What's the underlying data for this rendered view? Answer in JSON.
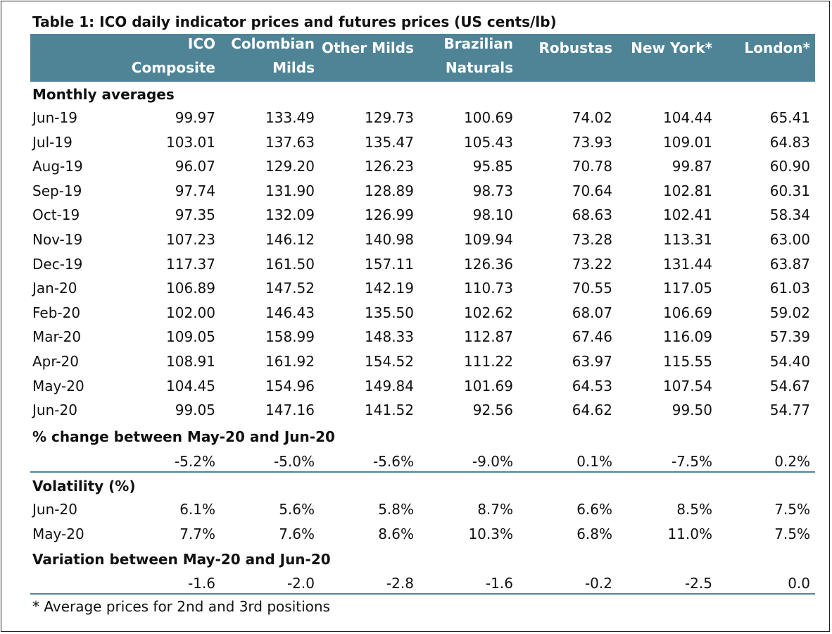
{
  "title": "Table 1: ICO daily indicator prices and futures prices (US cents/lb)",
  "headers": [
    {
      "line1": "ICO",
      "line2": "Composite"
    },
    {
      "line1": "Colombian",
      "line2": "Milds"
    },
    {
      "line1": "",
      "line2": "Other Milds"
    },
    {
      "line1": "Brazilian",
      "line2": "Naturals"
    },
    {
      "line1": "",
      "line2": "Robustas"
    },
    {
      "line1": "",
      "line2": "New York*"
    },
    {
      "line1": "",
      "line2": "London*"
    }
  ],
  "monthly": {
    "label": "Monthly averages",
    "rows": [
      {
        "label": "Jun-19",
        "values": [
          "99.97",
          "133.49",
          "129.73",
          "100.69",
          "74.02",
          "104.44",
          "65.41"
        ]
      },
      {
        "label": "Jul-19",
        "values": [
          "103.01",
          "137.63",
          "135.47",
          "105.43",
          "73.93",
          "109.01",
          "64.83"
        ]
      },
      {
        "label": "Aug-19",
        "values": [
          "96.07",
          "129.20",
          "126.23",
          "95.85",
          "70.78",
          "99.87",
          "60.90"
        ]
      },
      {
        "label": "Sep-19",
        "values": [
          "97.74",
          "131.90",
          "128.89",
          "98.73",
          "70.64",
          "102.81",
          "60.31"
        ]
      },
      {
        "label": "Oct-19",
        "values": [
          "97.35",
          "132.09",
          "126.99",
          "98.10",
          "68.63",
          "102.41",
          "58.34"
        ]
      },
      {
        "label": "Nov-19",
        "values": [
          "107.23",
          "146.12",
          "140.98",
          "109.94",
          "73.28",
          "113.31",
          "63.00"
        ]
      },
      {
        "label": "Dec-19",
        "values": [
          "117.37",
          "161.50",
          "157.11",
          "126.36",
          "73.22",
          "131.44",
          "63.87"
        ]
      },
      {
        "label": "Jan-20",
        "values": [
          "106.89",
          "147.52",
          "142.19",
          "110.73",
          "70.55",
          "117.05",
          "61.03"
        ]
      },
      {
        "label": "Feb-20",
        "values": [
          "102.00",
          "146.43",
          "135.50",
          "102.62",
          "68.07",
          "106.69",
          "59.02"
        ]
      },
      {
        "label": "Mar-20",
        "values": [
          "109.05",
          "158.99",
          "148.33",
          "112.87",
          "67.46",
          "116.09",
          "57.39"
        ]
      },
      {
        "label": "Apr-20",
        "values": [
          "108.91",
          "161.92",
          "154.52",
          "111.22",
          "63.97",
          "115.55",
          "54.40"
        ]
      },
      {
        "label": "May-20",
        "values": [
          "104.45",
          "154.96",
          "149.84",
          "101.69",
          "64.53",
          "107.54",
          "54.67"
        ]
      },
      {
        "label": "Jun-20",
        "values": [
          "99.05",
          "147.16",
          "141.52",
          "92.56",
          "64.62",
          "99.50",
          "54.77"
        ]
      }
    ]
  },
  "pct_change": {
    "label": "% change between May-20 and Jun-20",
    "values": [
      "-5.2%",
      "-5.0%",
      "-5.6%",
      "-9.0%",
      "0.1%",
      "-7.5%",
      "0.2%"
    ]
  },
  "volatility": {
    "label": "Volatility (%)",
    "rows": [
      {
        "label": "Jun-20",
        "values": [
          "6.1%",
          "5.6%",
          "5.8%",
          "8.7%",
          "6.6%",
          "8.5%",
          "7.5%"
        ]
      },
      {
        "label": "May-20",
        "values": [
          "7.7%",
          "7.6%",
          "8.6%",
          "10.3%",
          "6.8%",
          "11.0%",
          "7.5%"
        ]
      }
    ]
  },
  "variation": {
    "label": "Variation between May-20 and Jun-20",
    "values": [
      "-1.6",
      "-2.0",
      "-2.8",
      "-1.6",
      "-0.2",
      "-2.5",
      "0.0"
    ]
  },
  "footnote": "* Average prices for 2nd and 3rd positions",
  "colors": {
    "header_bg": "#4f8497",
    "header_text": "#ffffff",
    "rule": "#4f8497"
  }
}
